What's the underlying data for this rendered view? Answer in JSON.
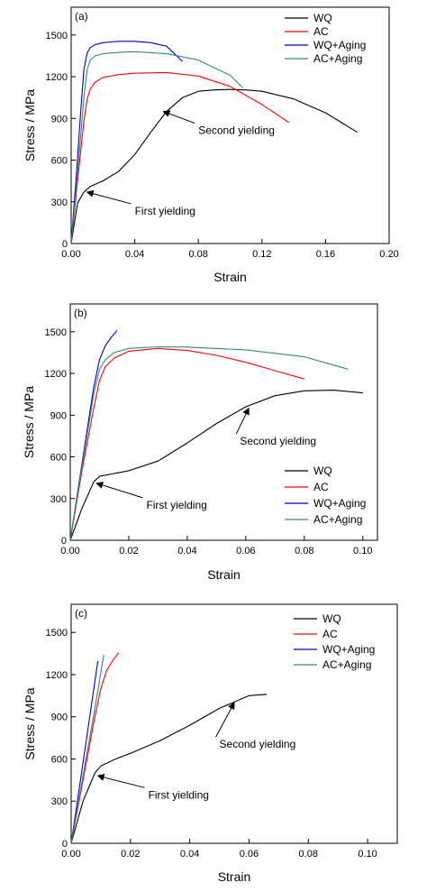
{
  "colors": {
    "WQ": "#000000",
    "AC": "#ff0000",
    "WQ+Aging": "#0000cc",
    "AC+Aging": "#2e8b7a"
  },
  "chart_data": [
    {
      "type": "line",
      "panel_label": "(a)",
      "xlabel": "Strain",
      "ylabel": "Stress / MPa",
      "xlim": [
        0,
        0.2
      ],
      "ylim": [
        0,
        1700
      ],
      "xticks": [
        0.0,
        0.04,
        0.08,
        0.12,
        0.16,
        0.2
      ],
      "xtick_labels": [
        "0.00",
        "0.04",
        "0.08",
        "0.12",
        "0.16",
        "0.20"
      ],
      "yticks": [
        0,
        300,
        600,
        900,
        1200,
        1500
      ],
      "ytick_labels": [
        "0",
        "300",
        "600",
        "900",
        "1200",
        "1500"
      ],
      "legend_position": "top-right",
      "series": [
        {
          "name": "WQ",
          "x": [
            0,
            0.004,
            0.008,
            0.012,
            0.02,
            0.03,
            0.04,
            0.05,
            0.06,
            0.07,
            0.08,
            0.09,
            0.1,
            0.11,
            0.12,
            0.14,
            0.16,
            0.18
          ],
          "y": [
            0,
            290,
            370,
            410,
            450,
            520,
            640,
            800,
            950,
            1050,
            1095,
            1105,
            1108,
            1105,
            1095,
            1040,
            940,
            800
          ]
        },
        {
          "name": "AC",
          "x": [
            0,
            0.004,
            0.008,
            0.01,
            0.012,
            0.015,
            0.02,
            0.03,
            0.04,
            0.06,
            0.08,
            0.1,
            0.12,
            0.137
          ],
          "y": [
            0,
            450,
            880,
            1040,
            1110,
            1160,
            1195,
            1215,
            1225,
            1230,
            1205,
            1130,
            1000,
            870
          ]
        },
        {
          "name": "WQ+Aging",
          "x": [
            0,
            0.003,
            0.006,
            0.008,
            0.01,
            0.012,
            0.015,
            0.02,
            0.03,
            0.04,
            0.05,
            0.06,
            0.07
          ],
          "y": [
            0,
            450,
            950,
            1250,
            1370,
            1410,
            1430,
            1445,
            1455,
            1455,
            1445,
            1420,
            1310
          ]
        },
        {
          "name": "AC+Aging",
          "x": [
            0,
            0.004,
            0.008,
            0.01,
            0.012,
            0.015,
            0.02,
            0.03,
            0.04,
            0.06,
            0.08,
            0.1,
            0.108
          ],
          "y": [
            0,
            500,
            1050,
            1250,
            1320,
            1350,
            1365,
            1375,
            1380,
            1365,
            1320,
            1210,
            1120
          ]
        }
      ],
      "annotations": [
        {
          "text": "Second yielding",
          "x": 0.08,
          "y": 840,
          "arrow_to": [
            0.058,
            950
          ]
        },
        {
          "text": "First yielding",
          "x": 0.04,
          "y": 260,
          "arrow_to": [
            0.01,
            370
          ]
        }
      ]
    },
    {
      "type": "line",
      "panel_label": "(b)",
      "xlabel": "Strain",
      "ylabel": "Stress / MPa",
      "xlim": [
        0,
        0.105
      ],
      "ylim": [
        0,
        1700
      ],
      "xticks": [
        0.0,
        0.02,
        0.04,
        0.06,
        0.08,
        0.1
      ],
      "xtick_labels": [
        "0.00",
        "0.02",
        "0.04",
        "0.06",
        "0.08",
        "0.10"
      ],
      "yticks": [
        0,
        300,
        600,
        900,
        1200,
        1500
      ],
      "ytick_labels": [
        "0",
        "300",
        "600",
        "900",
        "1200",
        "1500"
      ],
      "legend_position": "bottom-right",
      "series": [
        {
          "name": "WQ",
          "x": [
            0,
            0.004,
            0.008,
            0.01,
            0.015,
            0.02,
            0.03,
            0.04,
            0.05,
            0.06,
            0.07,
            0.08,
            0.09,
            0.1
          ],
          "y": [
            0,
            230,
            420,
            460,
            480,
            500,
            570,
            700,
            840,
            960,
            1040,
            1075,
            1080,
            1060
          ]
        },
        {
          "name": "AC",
          "x": [
            0,
            0.004,
            0.008,
            0.01,
            0.012,
            0.015,
            0.02,
            0.03,
            0.04,
            0.05,
            0.06,
            0.07,
            0.08
          ],
          "y": [
            0,
            500,
            950,
            1150,
            1250,
            1310,
            1360,
            1380,
            1365,
            1330,
            1280,
            1220,
            1160
          ]
        },
        {
          "name": "WQ+Aging",
          "x": [
            0,
            0.004,
            0.008,
            0.01,
            0.012,
            0.014,
            0.016
          ],
          "y": [
            0,
            550,
            1100,
            1300,
            1400,
            1460,
            1510
          ]
        },
        {
          "name": "AC+Aging",
          "x": [
            0,
            0.004,
            0.008,
            0.01,
            0.012,
            0.015,
            0.02,
            0.03,
            0.04,
            0.06,
            0.08,
            0.095
          ],
          "y": [
            0,
            530,
            1050,
            1230,
            1300,
            1350,
            1380,
            1392,
            1390,
            1370,
            1320,
            1230
          ]
        }
      ],
      "annotations": [
        {
          "text": "Second yielding",
          "x": 0.058,
          "y": 740,
          "arrow_to": [
            0.061,
            950
          ]
        },
        {
          "text": "First yielding",
          "x": 0.026,
          "y": 280,
          "arrow_to": [
            0.009,
            410
          ]
        }
      ]
    },
    {
      "type": "line",
      "panel_label": "(c)",
      "xlabel": "Strain",
      "ylabel": "Stress / MPa",
      "xlim": [
        0,
        0.11
      ],
      "ylim": [
        0,
        1700
      ],
      "xticks": [
        0.0,
        0.02,
        0.04,
        0.06,
        0.08,
        0.1
      ],
      "xtick_labels": [
        "0.00",
        "0.02",
        "0.04",
        "0.06",
        "0.08",
        "0.10"
      ],
      "yticks": [
        0,
        300,
        600,
        900,
        1200,
        1500
      ],
      "ytick_labels": [
        "0",
        "300",
        "600",
        "900",
        "1200",
        "1500"
      ],
      "legend_position": "top-right",
      "series": [
        {
          "name": "WQ",
          "x": [
            0,
            0.004,
            0.008,
            0.01,
            0.015,
            0.02,
            0.03,
            0.04,
            0.05,
            0.06,
            0.066
          ],
          "y": [
            0,
            300,
            500,
            550,
            600,
            640,
            730,
            840,
            960,
            1050,
            1060
          ]
        },
        {
          "name": "AC",
          "x": [
            0,
            0.004,
            0.008,
            0.01,
            0.012,
            0.014,
            0.016
          ],
          "y": [
            0,
            450,
            900,
            1100,
            1230,
            1300,
            1355
          ]
        },
        {
          "name": "WQ+Aging",
          "x": [
            0,
            0.003,
            0.006,
            0.009
          ],
          "y": [
            0,
            430,
            860,
            1295
          ]
        },
        {
          "name": "AC+Aging",
          "x": [
            0,
            0.004,
            0.008,
            0.011
          ],
          "y": [
            0,
            480,
            960,
            1340
          ]
        }
      ],
      "annotations": [
        {
          "text": "Second yielding",
          "x": 0.05,
          "y": 730,
          "arrow_to": [
            0.055,
            1000
          ]
        },
        {
          "text": "First yielding",
          "x": 0.026,
          "y": 370,
          "arrow_to": [
            0.009,
            480
          ]
        }
      ]
    }
  ]
}
